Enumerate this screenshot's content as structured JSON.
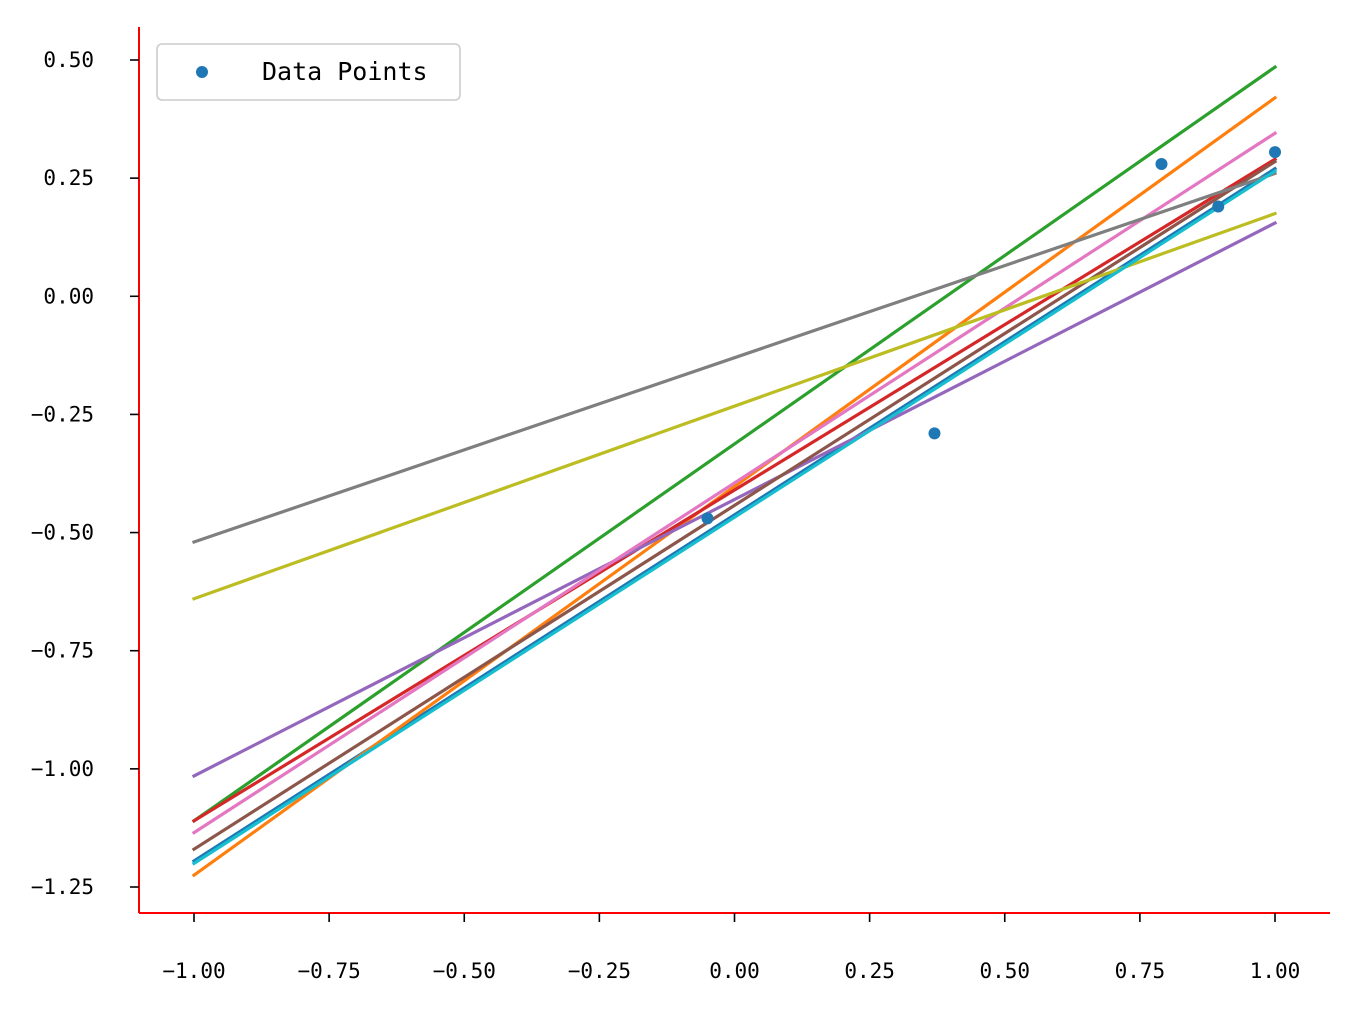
{
  "chart_data": {
    "type": "scatter",
    "title": "",
    "xlabel": "",
    "ylabel": "",
    "xlim": [
      -1.1,
      1.1
    ],
    "ylim": [
      -1.3,
      0.57
    ],
    "grid": false,
    "legend_placement": "top-left",
    "x_ticks": [
      -1.0,
      -0.75,
      -0.5,
      -0.25,
      0.0,
      0.25,
      0.5,
      0.75,
      1.0
    ],
    "x_tick_labels": [
      "−1.00",
      "−0.75",
      "−0.50",
      "−0.25",
      "0.00",
      "0.25",
      "0.50",
      "0.75",
      "1.00"
    ],
    "y_ticks": [
      0.5,
      0.25,
      0.0,
      -0.25,
      -0.5,
      -0.75,
      -1.0,
      -1.25
    ],
    "y_tick_labels": [
      "0.50",
      "0.25",
      "0.00",
      "−0.25",
      "−0.50",
      "−0.75",
      "−1.00",
      "−1.25"
    ],
    "axis_spine_color": "#ff0000",
    "scatter": {
      "name": "Data Points",
      "color": "#1f77b4",
      "points": [
        {
          "x": -0.05,
          "y": -0.47
        },
        {
          "x": 0.37,
          "y": -0.29
        },
        {
          "x": 0.79,
          "y": 0.28
        },
        {
          "x": 0.895,
          "y": 0.19
        },
        {
          "x": 1.0,
          "y": 0.305
        }
      ]
    },
    "lines": [
      {
        "color": "#1f77b4",
        "x": [
          -1.0,
          1.0
        ],
        "y": [
          -1.195,
          0.27
        ]
      },
      {
        "color": "#ff7f0e",
        "x": [
          -1.0,
          1.0
        ],
        "y": [
          -1.225,
          0.42
        ]
      },
      {
        "color": "#2ca02c",
        "x": [
          -1.0,
          1.0
        ],
        "y": [
          -1.11,
          0.485
        ]
      },
      {
        "color": "#d62728",
        "x": [
          -1.0,
          1.0
        ],
        "y": [
          -1.11,
          0.29
        ]
      },
      {
        "color": "#9467bd",
        "x": [
          -1.0,
          1.0
        ],
        "y": [
          -1.015,
          0.155
        ]
      },
      {
        "color": "#8c564b",
        "x": [
          -1.0,
          1.0
        ],
        "y": [
          -1.17,
          0.285
        ]
      },
      {
        "color": "#e377c2",
        "x": [
          -1.0,
          1.0
        ],
        "y": [
          -1.135,
          0.345
        ]
      },
      {
        "color": "#7f7f7f",
        "x": [
          -1.0,
          1.0
        ],
        "y": [
          -0.52,
          0.26
        ]
      },
      {
        "color": "#bcbd22",
        "x": [
          -1.0,
          1.0
        ],
        "y": [
          -0.64,
          0.175
        ]
      },
      {
        "color": "#17becf",
        "x": [
          -1.0,
          1.0
        ],
        "y": [
          -1.2,
          0.265
        ]
      }
    ],
    "legend": {
      "entries": [
        "Data Points"
      ]
    }
  }
}
